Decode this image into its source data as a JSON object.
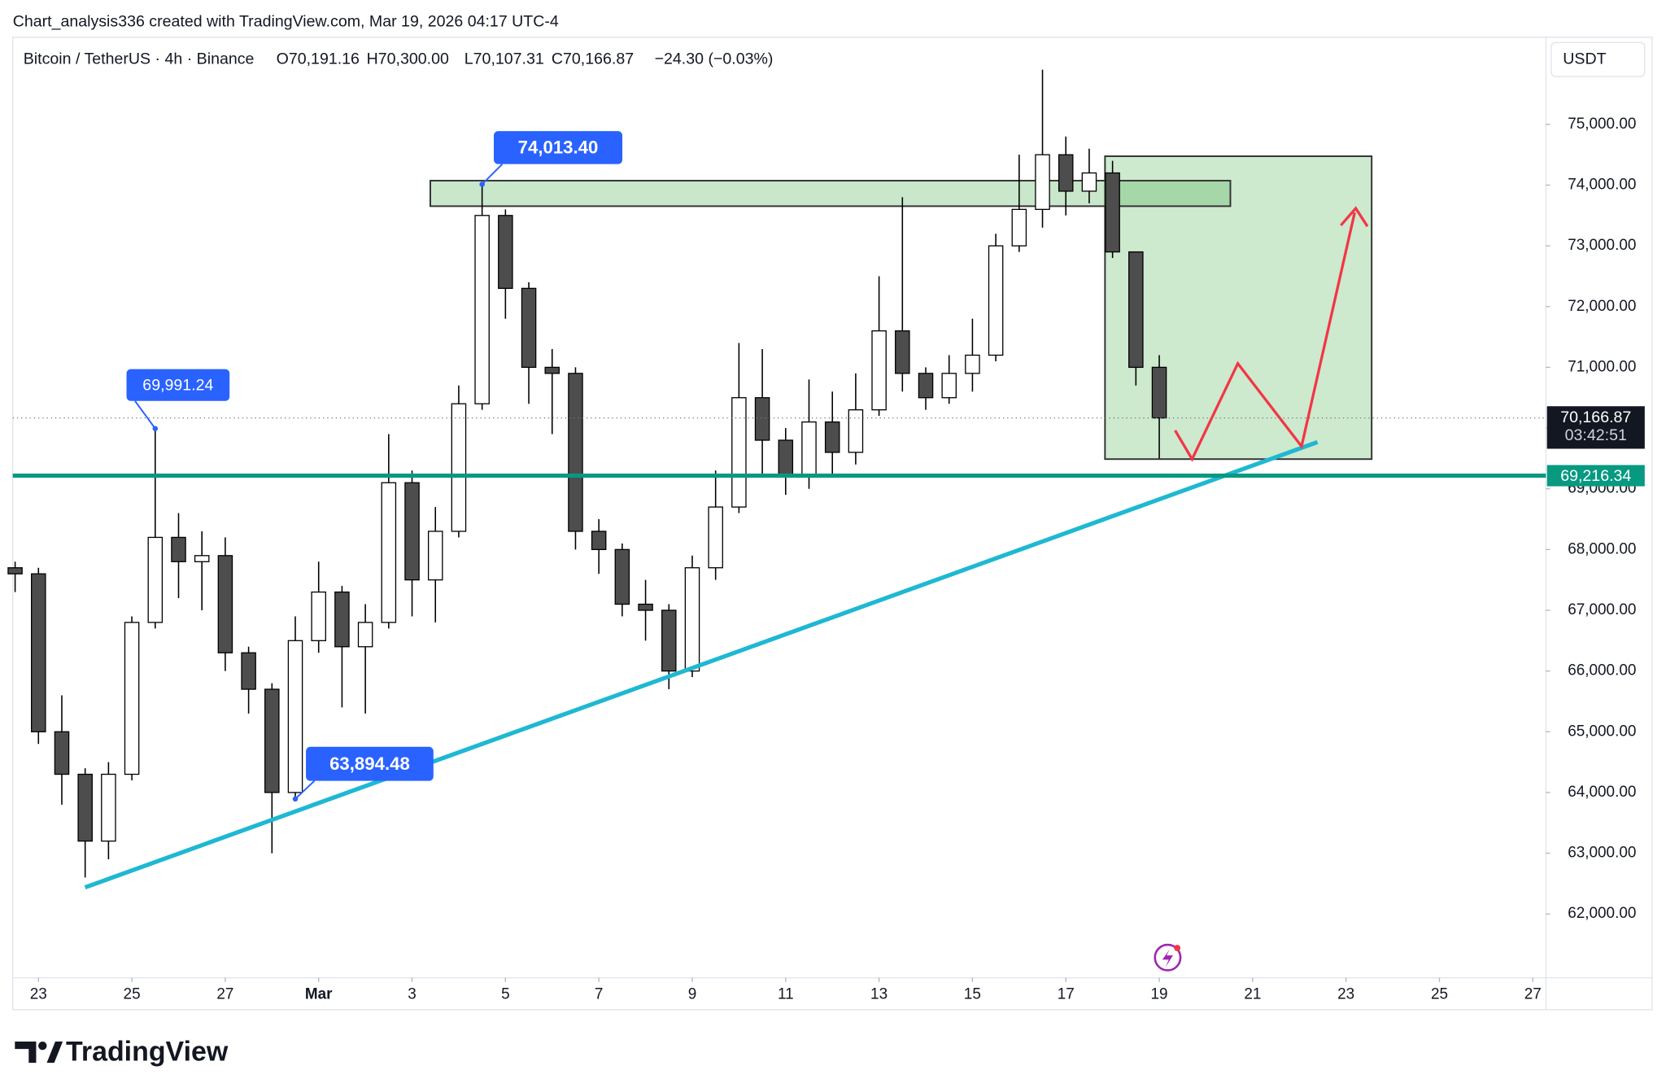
{
  "header": {
    "attribution": "Chart_analysis336 created with TradingView.com, Mar 19, 2026 04:17 UTC-4",
    "symbol": "Bitcoin / TetherUS · 4h · Binance",
    "ohlc": [
      "O70,191.16",
      "H70,300.00",
      "L70,107.31",
      "C70,166.87"
    ],
    "change": "−24.30 (−0.03%)",
    "currency": "USDT",
    "brand": "TradingView"
  },
  "chart_data": {
    "type": "candlestick",
    "up_color": "#ffffff",
    "down_color": "#4d4d4d",
    "grid": false,
    "x": [
      -0.5,
      0,
      0.5,
      1,
      1.5,
      2,
      2.5,
      3,
      3.5,
      4,
      4.5,
      5,
      5.5,
      6,
      6.5,
      7,
      7.5,
      8,
      8.5,
      9,
      9.5,
      10,
      10.5,
      11,
      11.5,
      12,
      12.5,
      13,
      13.5,
      14,
      14.5,
      15,
      15.5,
      16,
      16.5,
      17,
      17.5,
      18,
      18.5,
      19,
      19.5,
      20,
      20.5,
      21,
      21.5,
      22,
      22.5,
      23,
      23.5,
      24
    ],
    "open": [
      67700,
      67600,
      65000,
      64300,
      63200,
      64300,
      66800,
      68200,
      67800,
      67900,
      66300,
      65700,
      64000,
      66500,
      67300,
      66400,
      66800,
      69100,
      67500,
      68300,
      70400,
      73500,
      72300,
      71000,
      70900,
      68300,
      68000,
      67100,
      67000,
      66000,
      67700,
      68700,
      70500,
      69800,
      69200,
      70100,
      69600,
      70300,
      71600,
      70900,
      70500,
      70900,
      71200,
      73000,
      73600,
      74500,
      73900,
      74200,
      72900,
      71000
    ],
    "high": [
      67800,
      67700,
      65600,
      64400,
      64500,
      66900,
      69991.24,
      68600,
      68300,
      68200,
      66400,
      65800,
      66900,
      67800,
      67400,
      67100,
      69900,
      69300,
      68700,
      70700,
      74013.4,
      73600,
      72400,
      71300,
      71000,
      68500,
      68100,
      67500,
      67100,
      67900,
      69300,
      71400,
      71300,
      70000,
      70800,
      70600,
      70900,
      72500,
      73800,
      71000,
      71200,
      71800,
      73200,
      74500,
      75900,
      74800,
      74600,
      74400,
      72900,
      71200
    ],
    "low": [
      67300,
      64800,
      63800,
      62600,
      62900,
      64200,
      66700,
      67200,
      67000,
      66000,
      65300,
      63000,
      63894.48,
      66300,
      65400,
      65300,
      66700,
      66900,
      66800,
      68200,
      70300,
      71800,
      70400,
      69900,
      68000,
      67600,
      66900,
      66500,
      65700,
      65900,
      67500,
      68600,
      69200,
      68900,
      69000,
      69200,
      69400,
      70200,
      70600,
      70300,
      70400,
      70600,
      71100,
      72900,
      73300,
      73500,
      73700,
      72800,
      70700,
      69500
    ],
    "close": [
      67600,
      65000,
      64300,
      63200,
      64300,
      66800,
      68200,
      67800,
      67900,
      66300,
      65700,
      64000,
      66500,
      67300,
      66400,
      66800,
      69100,
      67500,
      68300,
      70400,
      73500,
      72300,
      71000,
      70900,
      68300,
      68000,
      67100,
      67000,
      66000,
      67700,
      68700,
      70500,
      69800,
      69200,
      70100,
      69600,
      70300,
      71600,
      70900,
      70500,
      70900,
      71200,
      73000,
      73600,
      74500,
      73900,
      74200,
      72900,
      71000,
      70166.87
    ],
    "xlim": [
      -0.55,
      32.28
    ],
    "xticks": [
      {
        "value": 0,
        "label": "23"
      },
      {
        "value": 2,
        "label": "25"
      },
      {
        "value": 4,
        "label": "27"
      },
      {
        "value": 6,
        "label": "Mar"
      },
      {
        "value": 8,
        "label": "3"
      },
      {
        "value": 10,
        "label": "5"
      },
      {
        "value": 12,
        "label": "7"
      },
      {
        "value": 14,
        "label": "9"
      },
      {
        "value": 16,
        "label": "11"
      },
      {
        "value": 18,
        "label": "13"
      },
      {
        "value": 20,
        "label": "15"
      },
      {
        "value": 22,
        "label": "17"
      },
      {
        "value": 24,
        "label": "19"
      },
      {
        "value": 26,
        "label": "21"
      },
      {
        "value": 28,
        "label": "23"
      },
      {
        "value": 30,
        "label": "25"
      },
      {
        "value": 32,
        "label": "27"
      }
    ],
    "ylim": [
      60950,
      76435
    ],
    "yticks": [
      {
        "value": 62000,
        "label": "62,000.00"
      },
      {
        "value": 63000,
        "label": "63,000.00"
      },
      {
        "value": 64000,
        "label": "64,000.00"
      },
      {
        "value": 65000,
        "label": "65,000.00"
      },
      {
        "value": 66000,
        "label": "66,000.00"
      },
      {
        "value": 67000,
        "label": "67,000.00"
      },
      {
        "value": 68000,
        "label": "68,000.00"
      },
      {
        "value": 69000,
        "label": "69,000.00"
      },
      {
        "value": 70000,
        "label": "70,000.00"
      },
      {
        "value": 71000,
        "label": "71,000.00"
      },
      {
        "value": 72000,
        "label": "72,000.00"
      },
      {
        "value": 73000,
        "label": "73,000.00"
      },
      {
        "value": 74000,
        "label": "74,000.00"
      },
      {
        "value": 75000,
        "label": "75,000.00"
      }
    ],
    "last_price": {
      "value": 70166.87,
      "label": "70,166.87"
    },
    "countdown": "03:42:51",
    "hline": {
      "value": 69216.34,
      "label": "69,216.34",
      "color": "#089981"
    },
    "callouts": [
      {
        "x": 9.5,
        "value": 74013.4,
        "label": "74,013.40"
      },
      {
        "x": 2.5,
        "value": 69991.24,
        "label": "69,991.24"
      },
      {
        "x": 5.5,
        "value": 63894.48,
        "label": "63,894.48"
      }
    ],
    "callout_color": "#2962ff"
  }
}
